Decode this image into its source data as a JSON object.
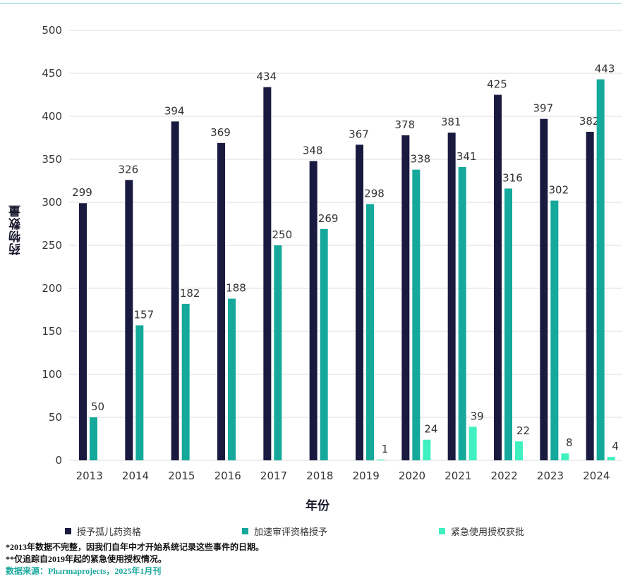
{
  "colors": {
    "orphan": "#1a1a40",
    "accelerated": "#14a99b",
    "emergency": "#3ff0c0",
    "grid": "#dddddd",
    "label": "#333333"
  },
  "chart_data": {
    "type": "bar",
    "categories": [
      "2013",
      "2014",
      "2015",
      "2016",
      "2017",
      "2018",
      "2019",
      "2020",
      "2021",
      "2022",
      "2023",
      "2024"
    ],
    "series": [
      {
        "name": "授予孤儿药资格",
        "values": [
          299,
          326,
          394,
          369,
          434,
          348,
          367,
          378,
          381,
          425,
          397,
          382
        ]
      },
      {
        "name": "加速审评资格授予",
        "values": [
          50,
          157,
          182,
          188,
          250,
          269,
          298,
          338,
          341,
          316,
          302,
          443
        ]
      },
      {
        "name": "紧急使用授权获批",
        "values": [
          null,
          null,
          null,
          null,
          null,
          null,
          1,
          24,
          39,
          22,
          8,
          4
        ]
      }
    ],
    "xlabel": "年份",
    "ylabel": "药物数量",
    "ylim": [
      0,
      500
    ],
    "yticks": [
      0,
      50,
      100,
      150,
      200,
      250,
      300,
      350,
      400,
      450,
      500
    ],
    "grid": true,
    "legend": "bottom"
  },
  "notes": {
    "note1": "*2013年数据不完整，因我们自年中才开始系统记录这些事件的日期。",
    "note2": "**仅追踪自2019年起的紧急使用授权情况。",
    "source": "数据来源：Pharmaprojects，2025年1月刊"
  }
}
